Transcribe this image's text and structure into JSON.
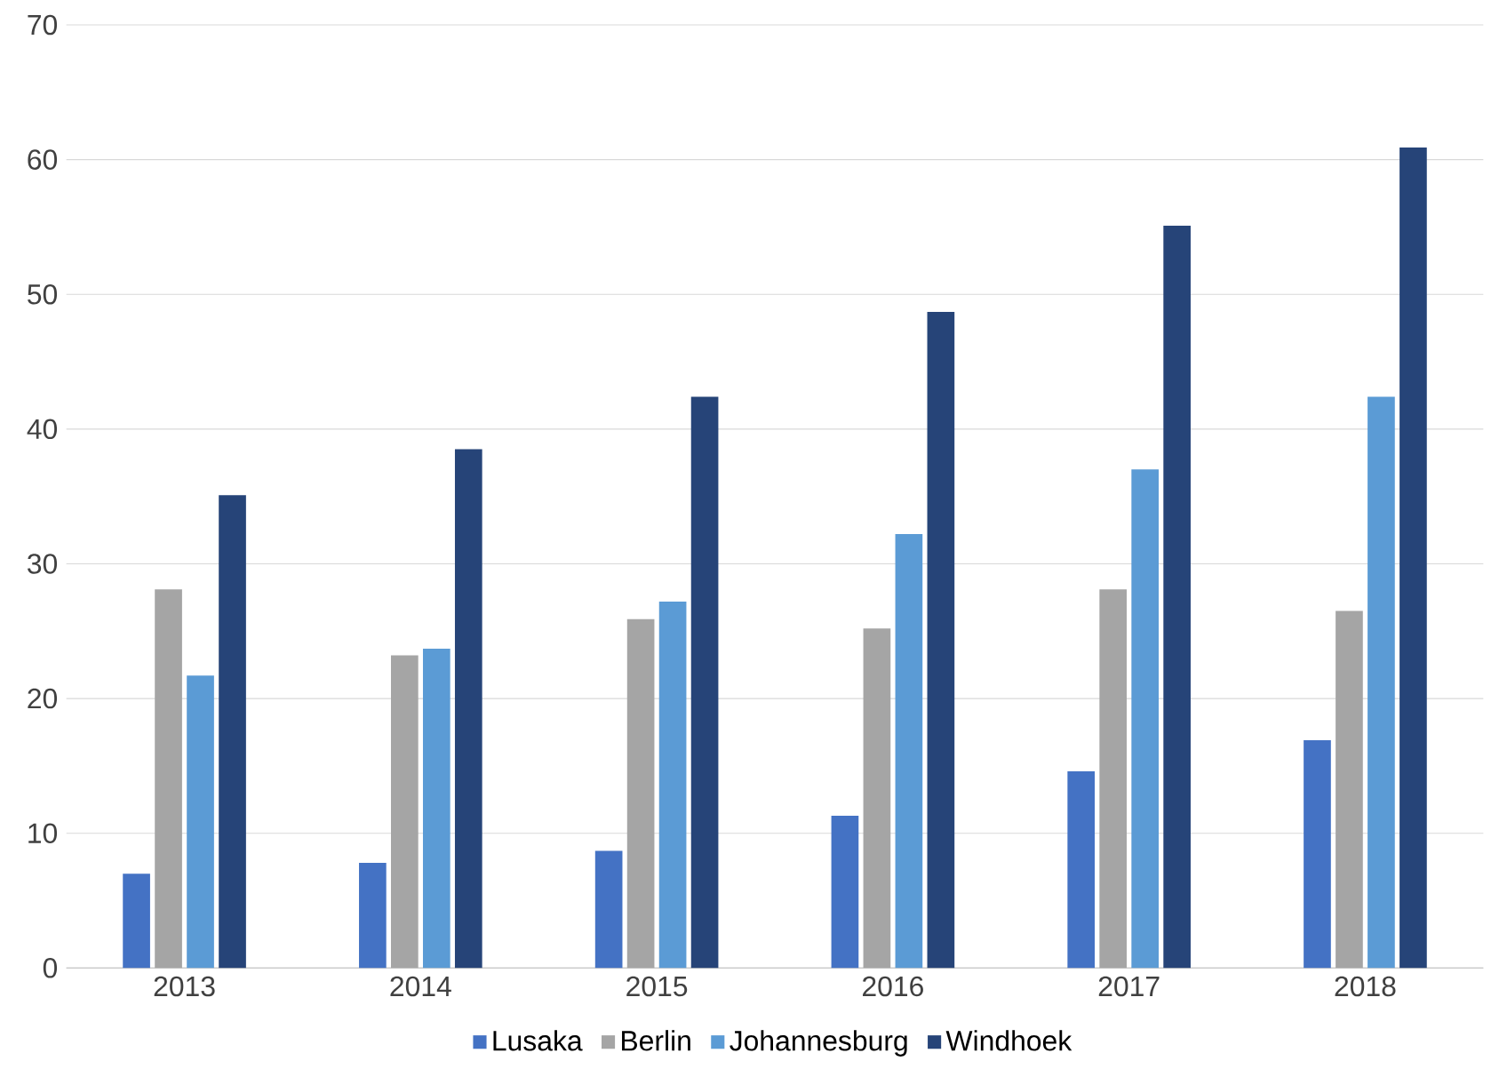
{
  "chart_data": {
    "type": "bar",
    "categories": [
      "2013",
      "2014",
      "2015",
      "2016",
      "2017",
      "2018"
    ],
    "series": [
      {
        "name": "Lusaka",
        "color": "#4472c4",
        "values": [
          7.0,
          7.8,
          8.7,
          11.3,
          14.6,
          16.9
        ]
      },
      {
        "name": "Berlin",
        "color": "#a5a5a5",
        "values": [
          28.1,
          23.2,
          25.9,
          25.2,
          28.1,
          26.5
        ]
      },
      {
        "name": "Johannesburg",
        "color": "#5b9bd5",
        "values": [
          21.7,
          23.7,
          27.2,
          32.2,
          37.0,
          42.4
        ]
      },
      {
        "name": "Windhoek",
        "color": "#264478",
        "values": [
          35.1,
          38.5,
          42.4,
          48.7,
          55.1,
          60.9
        ]
      }
    ],
    "ylim": [
      0,
      70
    ],
    "yticks": [
      0,
      10,
      20,
      30,
      40,
      50,
      60,
      70
    ],
    "grid": "y",
    "legend": "bottom"
  }
}
